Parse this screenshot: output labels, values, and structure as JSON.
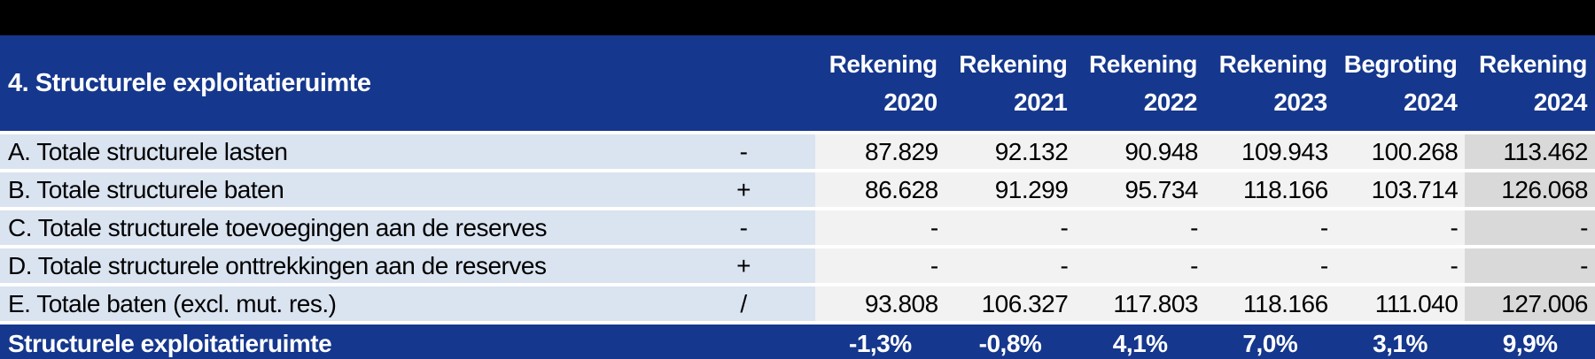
{
  "colors": {
    "top_bar": "#000000",
    "header_blue": "#15378D",
    "row_label_bg": "#DAE3F0",
    "cell_bg": "#F2F2F2",
    "last_col_bg": "#D9D9D9"
  },
  "table": {
    "title": "4. Structurele exploitatieruimte",
    "columns": [
      {
        "label": "Rekening",
        "year": "2020"
      },
      {
        "label": "Rekening",
        "year": "2021"
      },
      {
        "label": "Rekening",
        "year": "2022"
      },
      {
        "label": "Rekening",
        "year": "2023"
      },
      {
        "label": "Begroting",
        "year": "2024"
      },
      {
        "label": "Rekening",
        "year": "2024"
      }
    ],
    "rows": [
      {
        "label": "A. Totale structurele lasten",
        "operator": "-",
        "values": [
          "87.829",
          "92.132",
          "90.948",
          "109.943",
          "100.268",
          "113.462"
        ]
      },
      {
        "label": "B. Totale structurele baten",
        "operator": "+",
        "values": [
          "86.628",
          "91.299",
          "95.734",
          "118.166",
          "103.714",
          "126.068"
        ]
      },
      {
        "label": "C. Totale structurele toevoegingen aan de reserves",
        "operator": "-",
        "values": [
          "-",
          "-",
          "-",
          "-",
          "-",
          "-"
        ]
      },
      {
        "label": "D. Totale structurele onttrekkingen aan de reserves",
        "operator": "+",
        "values": [
          "-",
          "-",
          "-",
          "-",
          "-",
          "-"
        ]
      },
      {
        "label": "E. Totale baten (excl. mut. res.)",
        "operator": "/",
        "values": [
          "93.808",
          "106.327",
          "117.803",
          "118.166",
          "111.040",
          "127.006"
        ]
      }
    ],
    "footer": {
      "label": "Structurele exploitatieruimte",
      "values": [
        "-1,3%",
        "-0,8%",
        "4,1%",
        "7,0%",
        "3,1%",
        "9,9%"
      ]
    }
  }
}
